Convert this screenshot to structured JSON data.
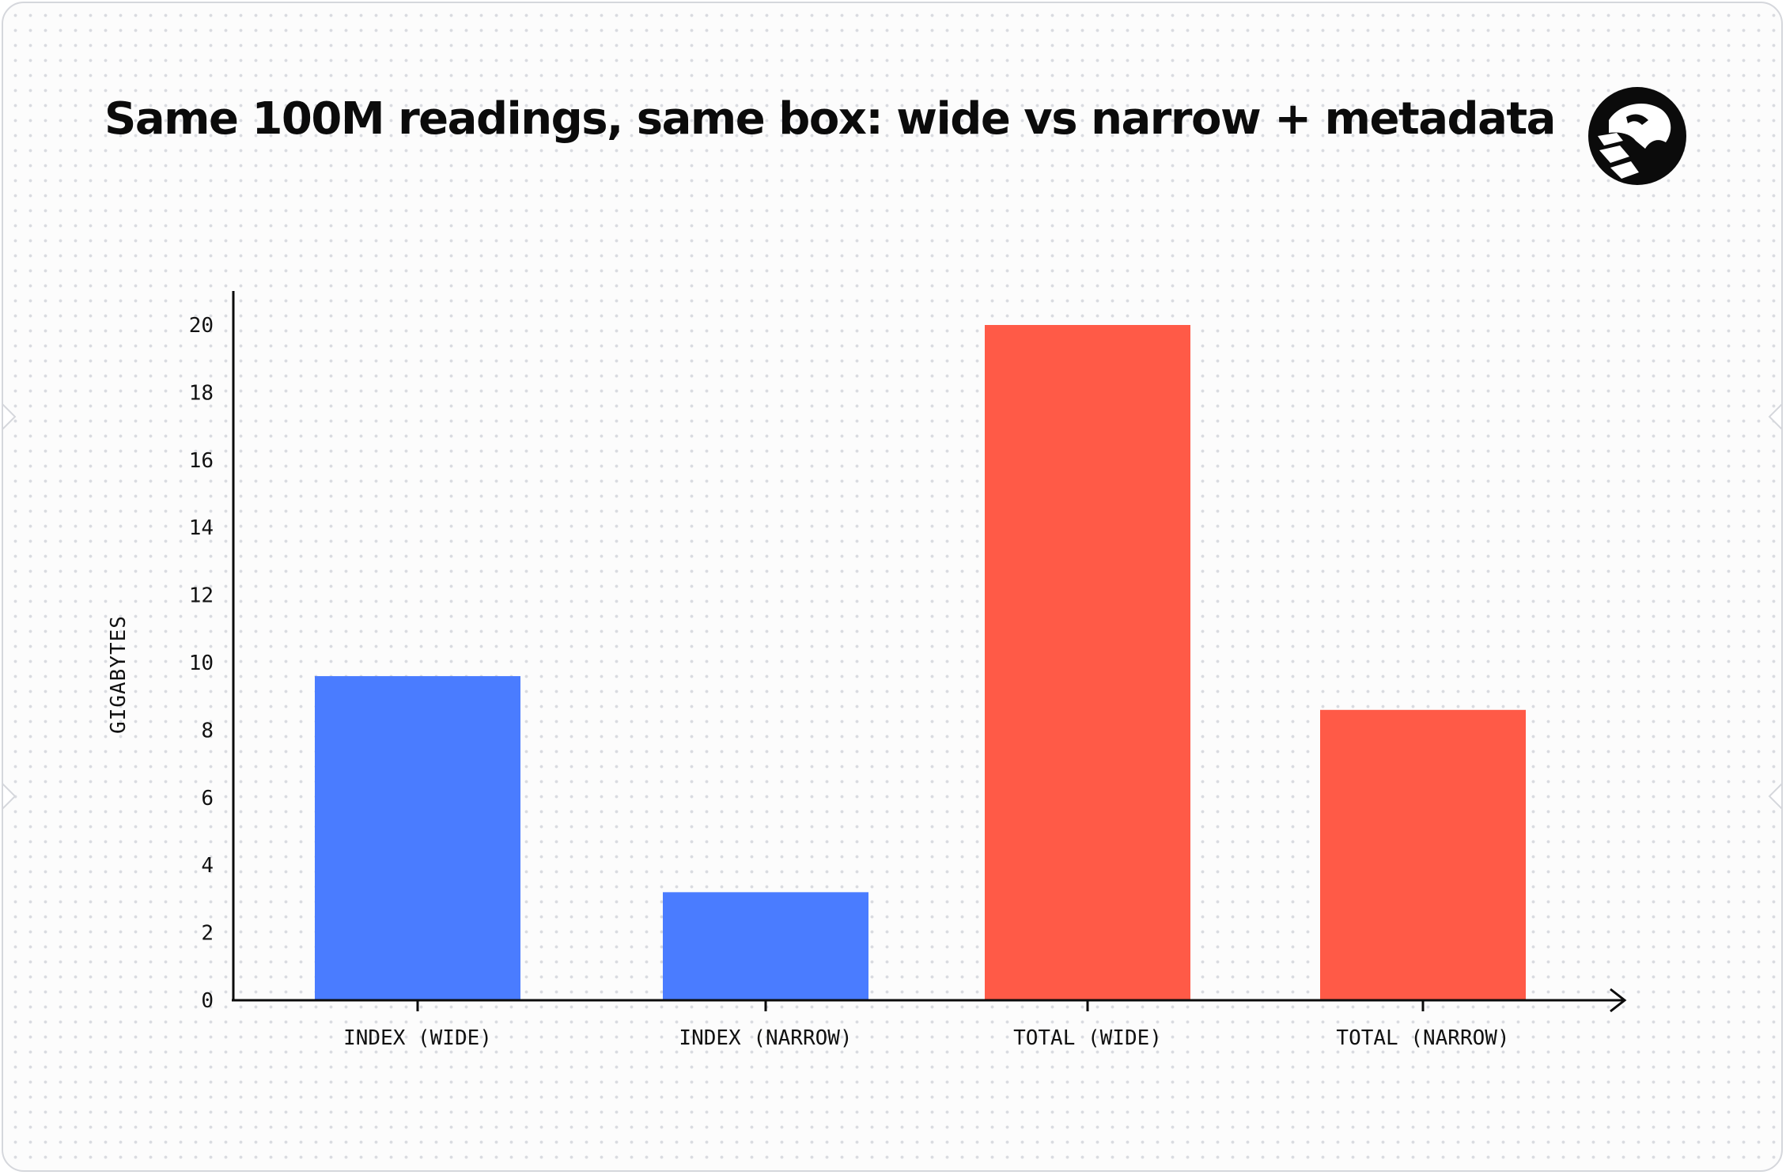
{
  "chart_data": {
    "type": "bar",
    "title": "Same 100M readings, same box: wide vs narrow + metadata",
    "xlabel": "",
    "ylabel": "GIGABYTES",
    "categories": [
      "INDEX (WIDE)",
      "INDEX (NARROW)",
      "TOTAL (WIDE)",
      "TOTAL (NARROW)"
    ],
    "values": [
      9.6,
      3.2,
      20.0,
      8.6
    ],
    "colors": [
      "#4a7cff",
      "#4a7cff",
      "#ff5a47",
      "#ff5a47"
    ],
    "ylim": [
      0,
      20
    ],
    "yticks": [
      0,
      2,
      4,
      6,
      8,
      10,
      12,
      14,
      16,
      18,
      20
    ],
    "grid": false,
    "legend": "none"
  },
  "logo": {
    "icon": "tiger-head-icon",
    "color": "#0b0b0b"
  }
}
